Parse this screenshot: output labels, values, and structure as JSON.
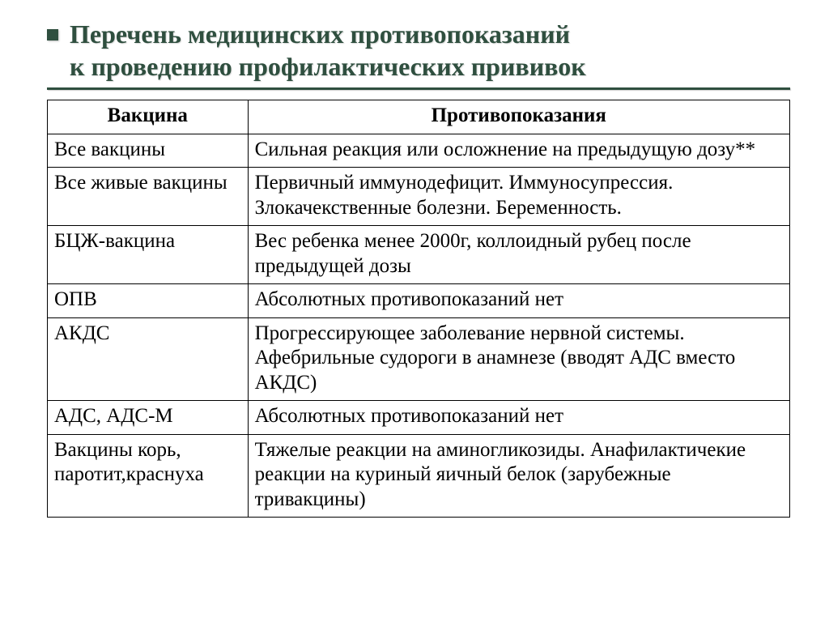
{
  "title": {
    "line1": "Перечень медицинских противопоказаний",
    "line2": "к проведению профилактических прививок",
    "color": "#2f4f3f",
    "fontsize": 32
  },
  "table": {
    "columns": [
      "Вакцина",
      "Противопоказания"
    ],
    "col_widths_pct": [
      27,
      73
    ],
    "header_fontweight": "bold",
    "cell_fontsize": 25,
    "border_color": "#000000",
    "rows": [
      [
        "Все вакцины",
        "Сильная реакция или осложнение на предыдущую дозу**"
      ],
      [
        "Все живые вакцины",
        "Первичный иммунодефицит. Иммуносупрессия. Злокачекственные болезни. Беременность."
      ],
      [
        "БЦЖ-вакцина",
        "Вес ребенка менее 2000г, коллоидный рубец после предыдущей дозы"
      ],
      [
        "ОПВ",
        "Абсолютных противопоказаний нет"
      ],
      [
        "АКДС",
        "Прогрессирующее заболевание нервной системы. Афебрильные судороги в анамнезе (вводят АДС вместо АКДС)"
      ],
      [
        "АДС, АДС-М",
        "Абсолютных противопоказаний нет"
      ],
      [
        "Вакцины корь, паротит,краснуха",
        "Тяжелые реакции на аминогликозиды. Анафилактичекие  реакции на куриный яичный белок (зарубежные тривакцины)"
      ]
    ]
  },
  "colors": {
    "accent": "#2f4f3f",
    "background": "#ffffff",
    "text": "#000000"
  }
}
